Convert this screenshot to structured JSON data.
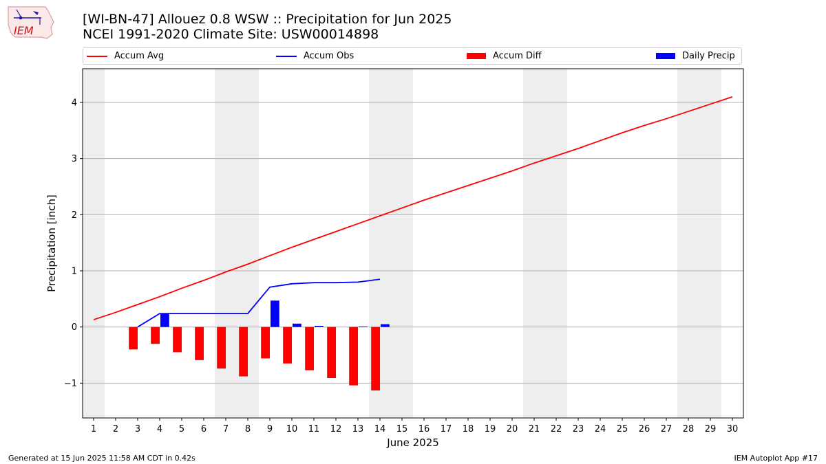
{
  "title": {
    "line1": "[WI-BN-47] Allouez 0.8 WSW :: Precipitation for Jun 2025",
    "line2": "NCEI 1991-2020 Climate Site: USW00014898"
  },
  "logo": {
    "text": "IEM"
  },
  "footer": {
    "left": "Generated at 15 Jun 2025 11:58 AM CDT in 0.42s",
    "right": "IEM Autoplot App #17"
  },
  "colors": {
    "avg": "#ff0000",
    "obs": "#0000ff",
    "diff": "#ff0000",
    "daily": "#0000ff",
    "weekend_shade": "#eeeeee",
    "grid": "#b0b0b0"
  },
  "chart_data": {
    "type": "line",
    "xlabel": "June 2025",
    "ylabel": "Precipitation [inch]",
    "xlim": [
      0.5,
      30.5
    ],
    "ylim": [
      -1.62,
      4.6
    ],
    "x_ticks": [
      1,
      2,
      3,
      4,
      5,
      6,
      7,
      8,
      9,
      10,
      11,
      12,
      13,
      14,
      15,
      16,
      17,
      18,
      19,
      20,
      21,
      22,
      23,
      24,
      25,
      26,
      27,
      28,
      29,
      30
    ],
    "y_ticks": [
      -1,
      0,
      1,
      2,
      3,
      4
    ],
    "y_tick_labels": [
      "−1",
      "0",
      "1",
      "2",
      "3",
      "4"
    ],
    "grid": "horizontal",
    "legend": [
      "Accum Avg",
      "Accum Obs",
      "Accum Diff",
      "Daily Precip"
    ],
    "legend_position": "top",
    "weekend_shading": [
      [
        0.5,
        1.5
      ],
      [
        6.5,
        8.5
      ],
      [
        13.5,
        15.5
      ],
      [
        20.5,
        22.5
      ],
      [
        27.5,
        29.5
      ]
    ],
    "series": [
      {
        "name": "Accum Avg",
        "kind": "line",
        "x": [
          1,
          2,
          3,
          4,
          5,
          6,
          7,
          8,
          9,
          10,
          11,
          12,
          13,
          14,
          15,
          16,
          17,
          18,
          19,
          20,
          21,
          22,
          23,
          24,
          25,
          26,
          27,
          28,
          29,
          30
        ],
        "values": [
          0.13,
          0.26,
          0.4,
          0.54,
          0.69,
          0.83,
          0.98,
          1.12,
          1.27,
          1.42,
          1.56,
          1.7,
          1.84,
          1.98,
          2.12,
          2.26,
          2.39,
          2.52,
          2.65,
          2.78,
          2.92,
          3.05,
          3.18,
          3.32,
          3.46,
          3.59,
          3.71,
          3.84,
          3.97,
          4.1
        ]
      },
      {
        "name": "Accum Obs",
        "kind": "line",
        "x": [
          3,
          4,
          5,
          6,
          7,
          8,
          9,
          10,
          11,
          12,
          13,
          14
        ],
        "values": [
          0.0,
          0.24,
          0.24,
          0.24,
          0.24,
          0.24,
          0.71,
          0.77,
          0.79,
          0.79,
          0.8,
          0.85
        ]
      },
      {
        "name": "Accum Diff",
        "kind": "bar",
        "x": [
          3,
          4,
          5,
          6,
          7,
          8,
          9,
          10,
          11,
          12,
          13,
          14
        ],
        "values": [
          -0.4,
          -0.3,
          -0.45,
          -0.59,
          -0.74,
          -0.88,
          -0.56,
          -0.65,
          -0.77,
          -0.91,
          -1.04,
          -1.13
        ]
      },
      {
        "name": "Daily Precip",
        "kind": "bar",
        "x": [
          3,
          4,
          5,
          6,
          7,
          8,
          9,
          10,
          11,
          12,
          13,
          14
        ],
        "values": [
          0.0,
          0.24,
          0.0,
          0.0,
          0.0,
          0.0,
          0.47,
          0.06,
          0.02,
          0.0,
          0.01,
          0.05
        ]
      }
    ]
  }
}
